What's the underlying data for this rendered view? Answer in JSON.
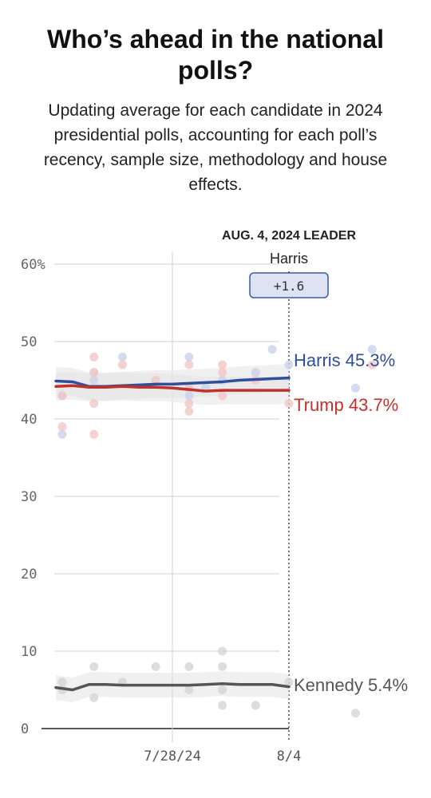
{
  "title": "Who’s ahead in the national polls?",
  "subtitle": "Updating average for each candidate in 2024 presidential polls, accounting for each poll’s recency, sample size, methodology and house effects.",
  "leader": {
    "heading": "AUG. 4, 2024 LEADER",
    "name": "Harris",
    "margin": "+1.6"
  },
  "colors": {
    "harris": "#2f4f9a",
    "trump": "#c2302a",
    "kennedy": "#555555",
    "harris_dot": "#c9d2ea",
    "trump_dot": "#f1c7c4",
    "kennedy_dot": "#d4d4d4",
    "band": "#e3e3e3",
    "badge_fill": "#dde3f3",
    "badge_stroke": "#3a5aa8"
  },
  "chart_data": {
    "type": "line",
    "title": "Who’s ahead in the national polls?",
    "ylim": [
      0,
      60
    ],
    "y_ticks": [
      0,
      10,
      20,
      30,
      40,
      50,
      60
    ],
    "y_tick_labels": [
      "0",
      "10",
      "20",
      "30",
      "40",
      "50",
      "60%"
    ],
    "x_range": [
      "2024-07-21",
      "2024-08-04"
    ],
    "x_ticks": [
      "2024-07-28",
      "2024-08-04"
    ],
    "x_tick_labels": [
      "7/28/24",
      "8/4"
    ],
    "grid": true,
    "series": [
      {
        "name": "Harris",
        "color_key": "harris",
        "end_label": "Harris 45.3%",
        "x": [
          "2024-07-21",
          "2024-07-22",
          "2024-07-23",
          "2024-07-24",
          "2024-07-25",
          "2024-07-26",
          "2024-07-27",
          "2024-07-28",
          "2024-07-29",
          "2024-07-30",
          "2024-07-31",
          "2024-08-01",
          "2024-08-02",
          "2024-08-03",
          "2024-08-04"
        ],
        "values": [
          44.9,
          44.8,
          44.2,
          44.2,
          44.3,
          44.4,
          44.5,
          44.5,
          44.6,
          44.7,
          44.8,
          45.0,
          45.1,
          45.2,
          45.3
        ]
      },
      {
        "name": "Trump",
        "color_key": "trump",
        "end_label": "Trump 43.7%",
        "x": [
          "2024-07-21",
          "2024-07-22",
          "2024-07-23",
          "2024-07-24",
          "2024-07-25",
          "2024-07-26",
          "2024-07-27",
          "2024-07-28",
          "2024-07-29",
          "2024-07-30",
          "2024-07-31",
          "2024-08-01",
          "2024-08-02",
          "2024-08-03",
          "2024-08-04"
        ],
        "values": [
          44.2,
          44.3,
          44.1,
          44.1,
          44.2,
          44.1,
          44.1,
          44.0,
          43.8,
          43.6,
          43.7,
          43.7,
          43.7,
          43.7,
          43.7
        ]
      },
      {
        "name": "Kennedy",
        "color_key": "kennedy",
        "end_label": "Kennedy 5.4%",
        "x": [
          "2024-07-21",
          "2024-07-22",
          "2024-07-23",
          "2024-07-24",
          "2024-07-25",
          "2024-07-26",
          "2024-07-27",
          "2024-07-28",
          "2024-07-29",
          "2024-07-30",
          "2024-07-31",
          "2024-08-01",
          "2024-08-02",
          "2024-08-03",
          "2024-08-04"
        ],
        "values": [
          5.3,
          5.0,
          5.7,
          5.7,
          5.6,
          5.6,
          5.6,
          5.6,
          5.6,
          5.7,
          5.8,
          5.7,
          5.7,
          5.7,
          5.4
        ]
      }
    ],
    "polls": {
      "harris": [
        [
          0,
          43
        ],
        [
          0,
          38
        ],
        [
          2,
          46
        ],
        [
          2,
          45
        ],
        [
          4,
          48
        ],
        [
          8,
          48
        ],
        [
          8,
          44
        ],
        [
          8,
          43
        ],
        [
          9,
          44
        ],
        [
          10,
          45
        ],
        [
          12,
          46
        ],
        [
          13,
          49
        ],
        [
          14,
          47
        ],
        [
          18,
          44
        ],
        [
          19,
          49
        ]
      ],
      "trump": [
        [
          0,
          43
        ],
        [
          0,
          39
        ],
        [
          2,
          42
        ],
        [
          2,
          48
        ],
        [
          2,
          38
        ],
        [
          2,
          46
        ],
        [
          4,
          47
        ],
        [
          6,
          45
        ],
        [
          8,
          47
        ],
        [
          8,
          42
        ],
        [
          8,
          41
        ],
        [
          8,
          44
        ],
        [
          10,
          46
        ],
        [
          10,
          47
        ],
        [
          10,
          43
        ],
        [
          12,
          45
        ],
        [
          14,
          42
        ],
        [
          19,
          47
        ]
      ],
      "kennedy": [
        [
          0,
          5
        ],
        [
          0,
          6
        ],
        [
          2,
          8
        ],
        [
          2,
          4
        ],
        [
          4,
          6
        ],
        [
          6,
          8
        ],
        [
          8,
          8
        ],
        [
          8,
          5
        ],
        [
          10,
          8
        ],
        [
          10,
          5
        ],
        [
          10,
          10
        ],
        [
          10,
          3
        ],
        [
          12,
          3
        ],
        [
          14,
          6
        ],
        [
          18,
          2
        ]
      ]
    }
  }
}
